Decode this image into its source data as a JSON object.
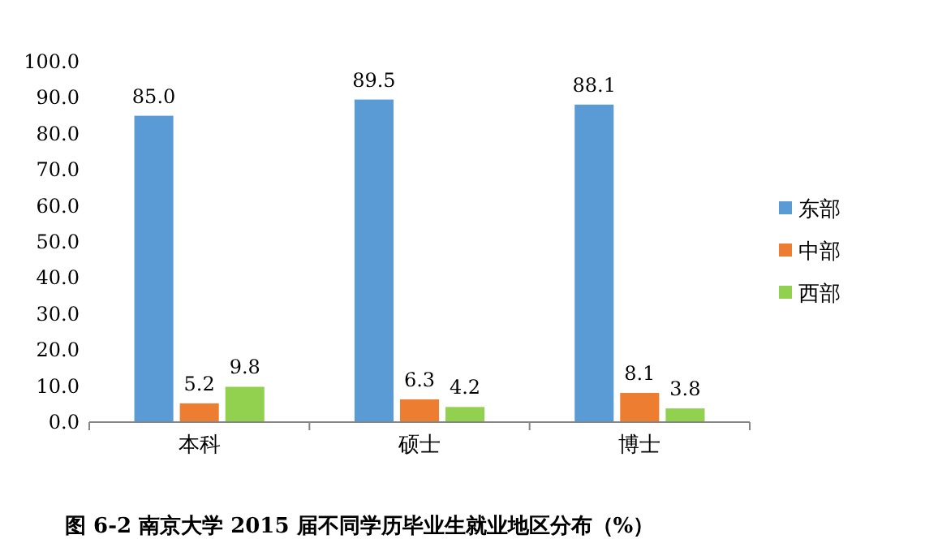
{
  "chart_data": {
    "type": "bar",
    "title": "图 6-2   南京大学 2015 届不同学历毕业生就业地区分布（%）",
    "categories": [
      "本科",
      "硕士",
      "博士"
    ],
    "series": [
      {
        "name": "东部",
        "color": "#5b9bd5",
        "values": [
          85.0,
          89.5,
          88.1
        ],
        "value_labels": [
          "85.0",
          "89.5",
          "88.1"
        ]
      },
      {
        "name": "中部",
        "color": "#ed7d31",
        "values": [
          5.2,
          6.3,
          8.1
        ],
        "value_labels": [
          "5.2",
          "6.3",
          "8.1"
        ]
      },
      {
        "name": "西部",
        "color": "#92d050",
        "values": [
          9.8,
          4.2,
          3.8
        ],
        "value_labels": [
          "9.8",
          "4.2",
          "3.8"
        ]
      }
    ],
    "ylim": [
      0,
      100
    ],
    "yticks": [
      {
        "value": 0,
        "label": "0.0"
      },
      {
        "value": 10,
        "label": "10.0"
      },
      {
        "value": 20,
        "label": "20.0"
      },
      {
        "value": 30,
        "label": "30.0"
      },
      {
        "value": 40,
        "label": "40.0"
      },
      {
        "value": 50,
        "label": "50.0"
      },
      {
        "value": 60,
        "label": "60.0"
      },
      {
        "value": 70,
        "label": "70.0"
      },
      {
        "value": 80,
        "label": "80.0"
      },
      {
        "value": 90,
        "label": "90.0"
      },
      {
        "value": 100,
        "label": "100.0"
      }
    ],
    "legend": "right"
  }
}
